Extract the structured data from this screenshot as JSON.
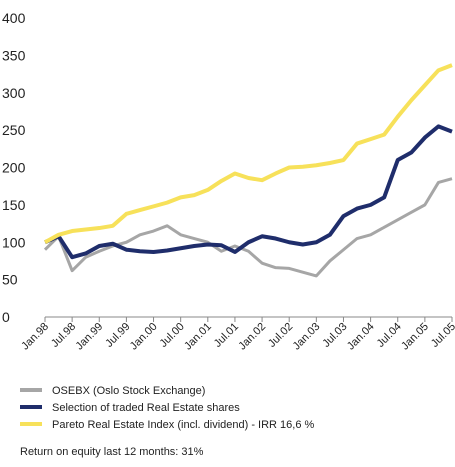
{
  "chart_data": {
    "type": "line",
    "categories": [
      "Jan.98",
      null,
      "Jul.98",
      null,
      "Jan.99",
      null,
      "Jul.99",
      null,
      "Jan.00",
      null,
      "Jul.00",
      null,
      "Jan.01",
      null,
      "Jul.01",
      null,
      "Jan.02",
      null,
      "Jul.02",
      null,
      "Jan.03",
      null,
      "Jul.03",
      null,
      "Jan.04",
      null,
      "Jul.04",
      null,
      "Jan.05",
      null,
      "Jul.05"
    ],
    "series": [
      {
        "name": "OSEBX (Oslo Stock Exchange)",
        "color": "#a6a6a6",
        "values": [
          90,
          108,
          62,
          80,
          88,
          95,
          100,
          110,
          115,
          122,
          110,
          105,
          100,
          88,
          95,
          88,
          72,
          66,
          65,
          60,
          55,
          75,
          90,
          105,
          110,
          120,
          130,
          140,
          150,
          180,
          185
        ]
      },
      {
        "name": "Selection of traded Real Estate shares",
        "color": "#1f2d6b",
        "values": [
          100,
          108,
          80,
          85,
          95,
          98,
          90,
          88,
          87,
          89,
          92,
          95,
          97,
          96,
          87,
          100,
          108,
          105,
          100,
          97,
          100,
          110,
          135,
          145,
          150,
          160,
          210,
          220,
          240,
          255,
          248
        ]
      },
      {
        "name": "Pareto Real Estate Index (incl. dividend) - IRR 16,6 %",
        "color": "#f7e15a",
        "values": [
          100,
          110,
          115,
          117,
          119,
          122,
          138,
          143,
          148,
          153,
          160,
          163,
          170,
          182,
          192,
          186,
          183,
          192,
          200,
          201,
          203,
          206,
          210,
          232,
          238,
          244,
          268,
          290,
          310,
          330,
          337
        ]
      }
    ],
    "ylim": [
      0,
      400
    ],
    "yticks": [
      0,
      50,
      100,
      150,
      200,
      250,
      300,
      350,
      400
    ],
    "note": "Return on equity last 12 months: 31%"
  }
}
